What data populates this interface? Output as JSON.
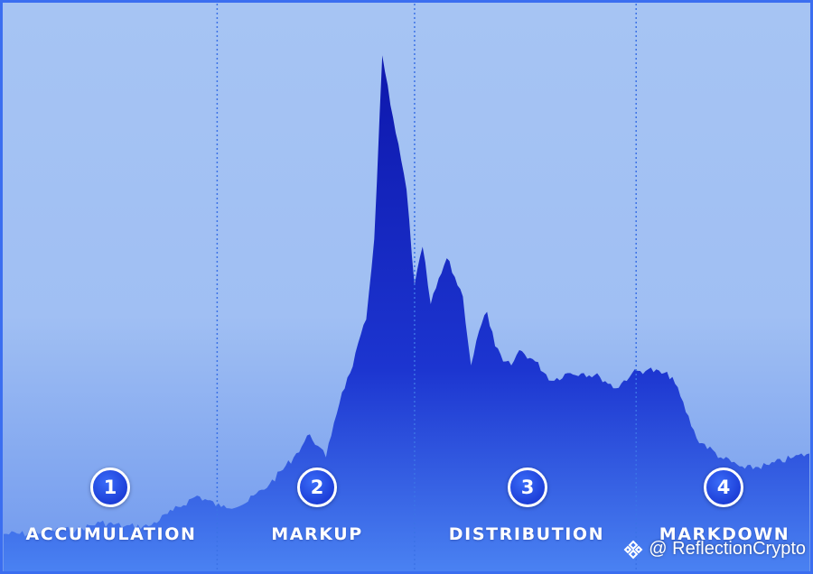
{
  "chart_data": {
    "type": "area",
    "x": [
      0,
      3,
      6,
      9,
      12,
      15,
      18,
      21,
      24,
      27,
      30,
      33,
      36,
      38,
      39,
      40,
      41,
      42,
      43,
      45,
      46,
      47,
      48,
      50,
      51,
      52,
      53,
      55,
      57,
      58,
      59,
      60,
      61,
      62,
      63,
      64,
      66,
      68,
      70,
      72,
      74,
      76,
      78,
      80,
      83,
      86,
      89,
      92,
      95,
      98,
      100
    ],
    "values": [
      1.0,
      1.0,
      1.1,
      1.1,
      1.3,
      1.2,
      1.2,
      1.6,
      2.0,
      1.7,
      1.8,
      2.3,
      3.0,
      3.6,
      3.3,
      3.0,
      3.9,
      4.7,
      5.2,
      6.6,
      8.7,
      13.5,
      12.2,
      10.0,
      7.5,
      8.5,
      7.0,
      8.2,
      7.2,
      5.4,
      6.3,
      6.8,
      5.9,
      5.5,
      5.4,
      5.8,
      5.5,
      5.0,
      5.2,
      5.2,
      5.1,
      4.8,
      5.2,
      5.3,
      5.1,
      3.5,
      3.0,
      2.7,
      2.8,
      3.0,
      3.1
    ],
    "ylim": [
      0,
      14
    ],
    "xlim": [
      0,
      100
    ],
    "phase_boundaries": [
      26.5,
      51,
      78.5
    ]
  },
  "phases": [
    {
      "number": "1",
      "label": "ACCUMULATION"
    },
    {
      "number": "2",
      "label": "MARKUP"
    },
    {
      "number": "3",
      "label": "DISTRIBUTION"
    },
    {
      "number": "4",
      "label": "MARKDOWN"
    }
  ],
  "watermark": {
    "text": "@ ReflectionCrypto"
  },
  "colors": {
    "background_top": "#a6c4f3",
    "background_bottom": "#6f98ee",
    "area_top": "#0f1ab0",
    "area_bottom": "#4a82f2",
    "divider": "#3b72e6",
    "border": "#3b6ef0"
  }
}
